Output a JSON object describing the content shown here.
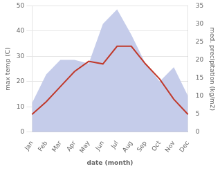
{
  "chart_data": {
    "type": "line",
    "xlabel": "date (month)",
    "ylabel": "max temp (C)",
    "y2label": "med. precipitation (kg/m2)",
    "categories": [
      "Jan",
      "Feb",
      "Mar",
      "Apr",
      "May",
      "Jun",
      "Jul",
      "Aug",
      "Sep",
      "Oct",
      "Nov",
      "Dec"
    ],
    "series": [
      {
        "type": "area",
        "color": "#c5ccea",
        "axis": "y2",
        "values": [
          8,
          16,
          20,
          20,
          19,
          30,
          34,
          27,
          19,
          14,
          18,
          10
        ]
      },
      {
        "type": "line",
        "color": "#c0392b",
        "values": [
          7,
          12,
          18,
          24,
          28,
          27,
          34,
          34,
          27,
          21,
          13,
          7
        ]
      }
    ],
    "ylim": [
      0,
      50
    ],
    "yticks": [
      0,
      10,
      20,
      30,
      40,
      50
    ],
    "y2lim": [
      0,
      35
    ],
    "y2ticks": [
      0,
      5,
      10,
      15,
      20,
      25,
      30,
      35
    ],
    "grid": true
  }
}
